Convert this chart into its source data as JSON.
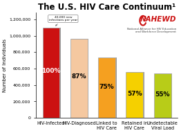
{
  "title": "The U.S. HIV Care Continuum¹",
  "ylabel": "Number of Individuals",
  "categories": [
    "HIV-Infected",
    "HIV-Diagnosed",
    "Linked to\nHIV Care",
    "Retained in\nHIV Care",
    "Undetectable\nViral Load"
  ],
  "values": [
    1100000,
    960000,
    730000,
    560000,
    540000
  ],
  "percentages": [
    "100%",
    "87%",
    "75%",
    "57%",
    "55%"
  ],
  "bar_colors": [
    "#cc1111",
    "#f5c8a0",
    "#f5a020",
    "#f5d000",
    "#b8cc18"
  ],
  "bar_edge_color": "#aaaaaa",
  "shadow_color": "#999999",
  "ylim": [
    0,
    1280000
  ],
  "yticks": [
    0,
    200000,
    400000,
    600000,
    800000,
    1000000,
    1200000
  ],
  "ytick_labels": [
    "0",
    "200,000",
    "400,000",
    "600,000",
    "800,000",
    "1,000,000",
    "1,200,000"
  ],
  "annotation_text": "40,000 new\ninfections per year",
  "background_color": "#ffffff",
  "plot_bg_color": "#ffffff",
  "title_fontsize": 8.5,
  "label_fontsize": 4.8,
  "pct_fontsize": 6.5,
  "ytick_fontsize": 4.5,
  "ylabel_fontsize": 5.0,
  "nahewd_color": "#cc1111",
  "nahewd_fontsize": 7.5,
  "nahewd_sub_fontsize": 3.0
}
